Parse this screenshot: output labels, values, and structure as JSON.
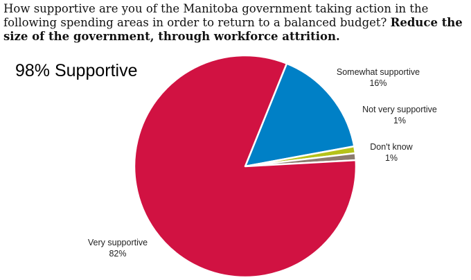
{
  "chart_data": {
    "type": "pie",
    "title_regular": "How supportive are you of the Manitoba government taking action in the following spending areas in order to return to a balanced budget?",
    "title_bold": "Reduce the size of the government, through workforce attrition.",
    "summary": "98% Supportive",
    "slices": [
      {
        "label": "Very supportive",
        "value": 82,
        "value_label": "82%",
        "color": "#d11242"
      },
      {
        "label": "Somewhat supportive",
        "value": 16,
        "value_label": "16%",
        "color": "#0080c6"
      },
      {
        "label": "Not very supportive",
        "value": 1,
        "value_label": "1%",
        "color": "#b5c21a"
      },
      {
        "label": "Don't know",
        "value": 1,
        "value_label": "1%",
        "color": "#8c7b6f"
      }
    ]
  }
}
